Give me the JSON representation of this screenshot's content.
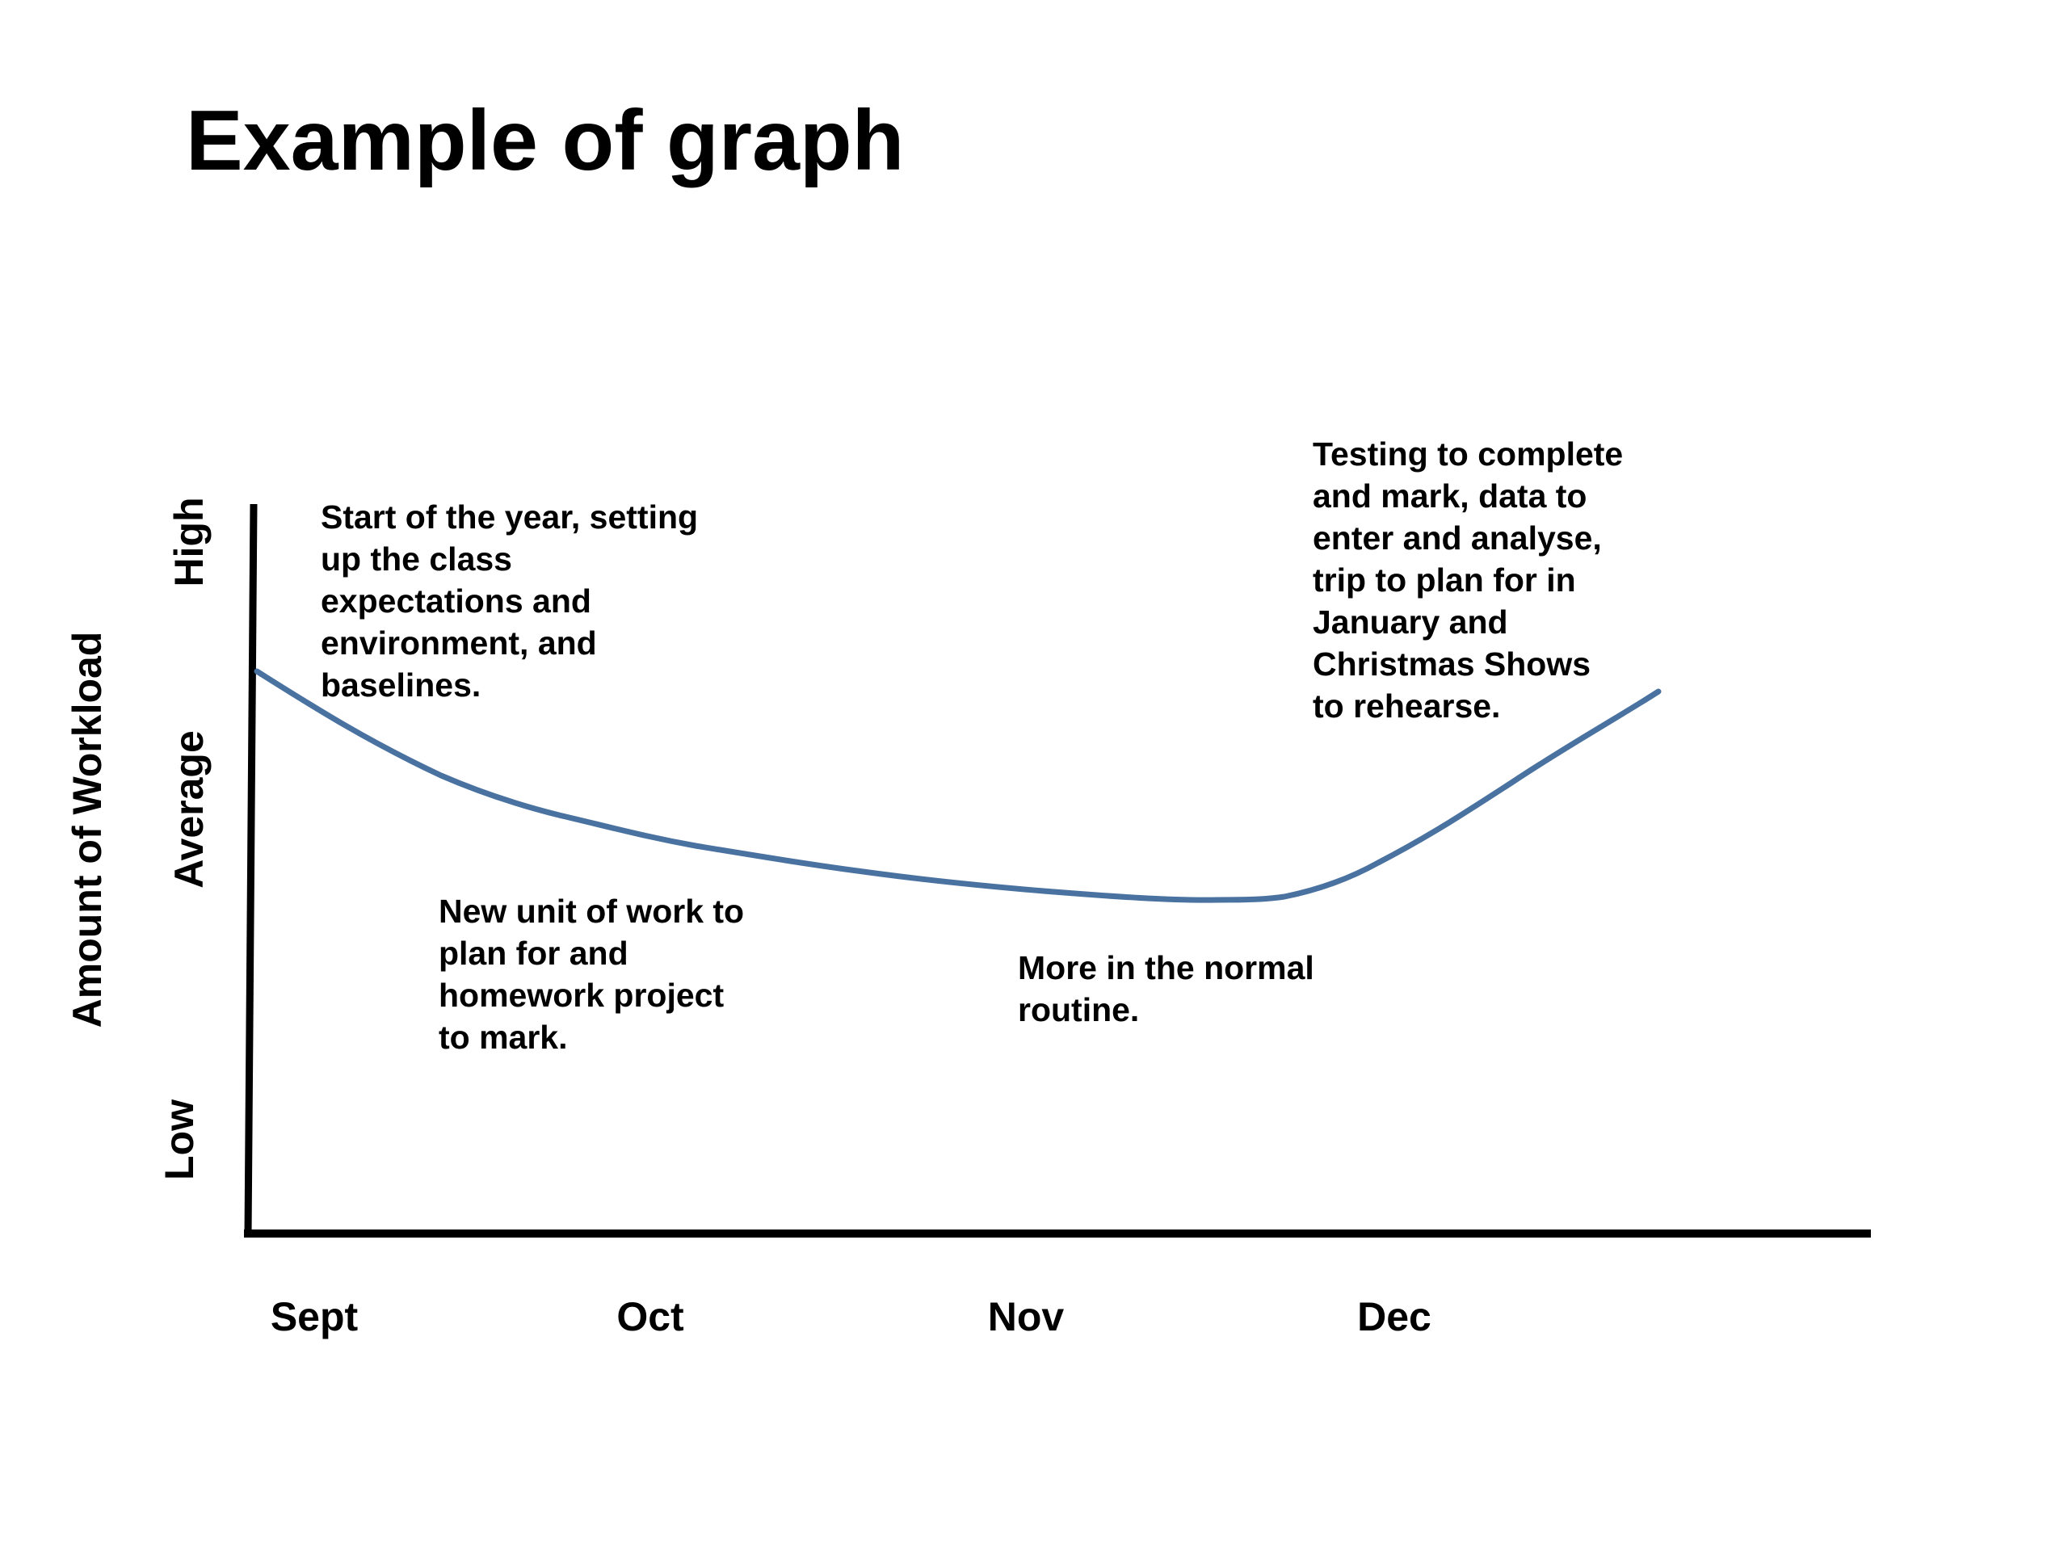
{
  "header": {
    "title": "Example of graph"
  },
  "axes": {
    "y_title": "Amount of Workload",
    "y_levels": [
      "Low",
      "Average",
      "High"
    ],
    "x_labels": [
      "Sept",
      "Oct",
      "Nov",
      "Dec"
    ]
  },
  "notes": [
    {
      "lines": [
        "Start of the year, setting",
        "up the class",
        "expectations and",
        "environment, and",
        "baselines."
      ]
    },
    {
      "lines": [
        "New unit of work to",
        "plan for and",
        "homework project",
        "to mark."
      ]
    },
    {
      "lines": [
        "More in the normal",
        "routine."
      ]
    },
    {
      "lines": [
        "Testing to complete",
        "and mark, data to",
        "enter and analyse,",
        "trip to plan for in",
        "January and",
        "Christmas Shows",
        "to rehearse."
      ]
    }
  ]
}
